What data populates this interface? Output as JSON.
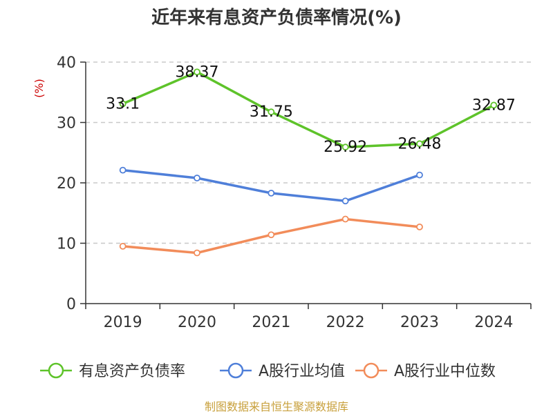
{
  "chart_data": {
    "type": "line",
    "title": "近年来有息资产负债率情况(%)",
    "ylabel": "(%)",
    "xlabel": "",
    "categories": [
      "2019",
      "2020",
      "2021",
      "2022",
      "2023",
      "2024"
    ],
    "ylim": [
      0,
      40
    ],
    "yticks": [
      0,
      10,
      20,
      30,
      40
    ],
    "grid": true,
    "legend_position": "bottom",
    "series": [
      {
        "name": "有息资产负债率",
        "color": "#5ec32a",
        "values": [
          33.1,
          38.37,
          31.75,
          25.92,
          26.48,
          32.87
        ],
        "labels": [
          "33.1",
          "38.37",
          "31.75",
          "25.92",
          "26.48",
          "32.87"
        ]
      },
      {
        "name": "A股行业均值",
        "color": "#4f7fd9",
        "values": [
          22.1,
          20.8,
          18.3,
          17.0,
          21.3,
          null
        ]
      },
      {
        "name": "A股行业中位数",
        "color": "#f28c5a",
        "values": [
          9.5,
          8.4,
          11.4,
          14.0,
          12.7,
          null
        ]
      }
    ]
  },
  "source": "制图数据来自恒生聚源数据库"
}
